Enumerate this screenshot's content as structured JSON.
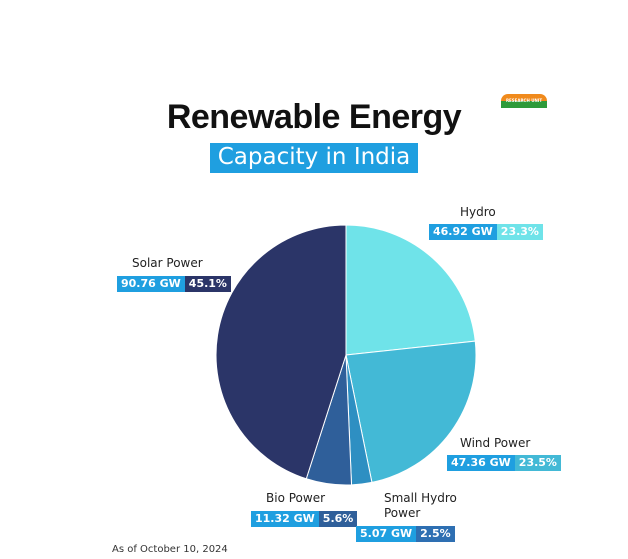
{
  "header": {
    "title": "Renewable Energy",
    "subtitle": "Capacity in India",
    "logo_text": "RESEARCH UNIT"
  },
  "footnote": "As of October 10, 2024",
  "colors": {
    "subtitle_bg": "#1f9fe0",
    "badge_value_bg": "#1f9fe0"
  },
  "chart_data": {
    "type": "pie",
    "title": "Renewable Energy Capacity in India",
    "slices": [
      {
        "label": "Hydro",
        "value_label": "46.92 GW",
        "percent_label": "23.3%",
        "value": 46.92,
        "percent": 23.3,
        "color": "#6fe3e9",
        "badge_color": "#6fe3e9"
      },
      {
        "label": "Wind Power",
        "value_label": "47.36 GW",
        "percent_label": "23.5%",
        "value": 47.36,
        "percent": 23.5,
        "color": "#43b9d6",
        "badge_color": "#43b9d6"
      },
      {
        "label": "Small Hydro Power",
        "value_label": "5.07 GW",
        "percent_label": "2.5%",
        "value": 5.07,
        "percent": 2.5,
        "color": "#2e8fc2",
        "badge_color": "#2e6fb2"
      },
      {
        "label": "Bio Power",
        "value_label": "11.32 GW",
        "percent_label": "5.6%",
        "value": 11.32,
        "percent": 5.6,
        "color": "#2f5f9a",
        "badge_color": "#2f5f9a"
      },
      {
        "label": "Solar Power",
        "value_label": "90.76 GW",
        "percent_label": "45.1%",
        "value": 90.76,
        "percent": 45.1,
        "color": "#2b3568",
        "badge_color": "#2b3568"
      }
    ]
  }
}
